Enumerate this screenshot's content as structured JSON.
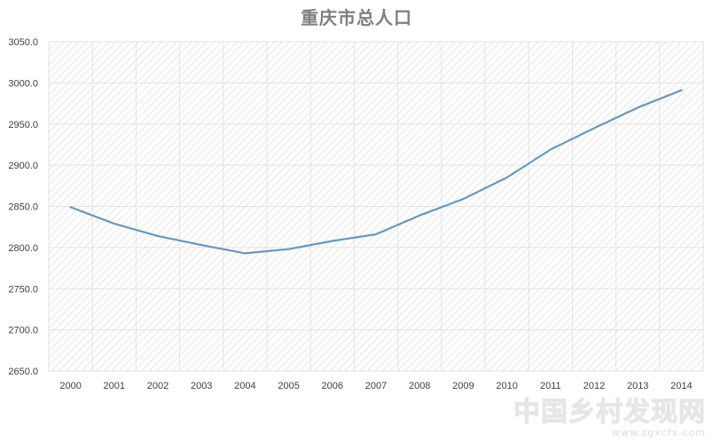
{
  "chart_data": {
    "type": "line",
    "title": "重庆市总人口",
    "xlabel": "",
    "ylabel": "",
    "categories": [
      "2000",
      "2001",
      "2002",
      "2003",
      "2004",
      "2005",
      "2006",
      "2007",
      "2008",
      "2009",
      "2010",
      "2011",
      "2012",
      "2013",
      "2014"
    ],
    "series": [
      {
        "values": [
          2849,
          2829,
          2814,
          2803,
          2793,
          2798,
          2808,
          2816,
          2839,
          2859,
          2885,
          2919,
          2945,
          2970,
          2991
        ],
        "color": "#6a97b8"
      }
    ],
    "ylim": [
      2650,
      3050
    ],
    "yticks": [
      "3050.0",
      "3000.0",
      "2950.0",
      "2900.0",
      "2850.0",
      "2800.0",
      "2750.0",
      "2700.0",
      "2650.0"
    ],
    "grid": true,
    "legend": "none",
    "plot_background": "hatched light gray"
  },
  "watermark": {
    "text": "中国乡村发现网",
    "url": "www.zgxcfx.com"
  }
}
